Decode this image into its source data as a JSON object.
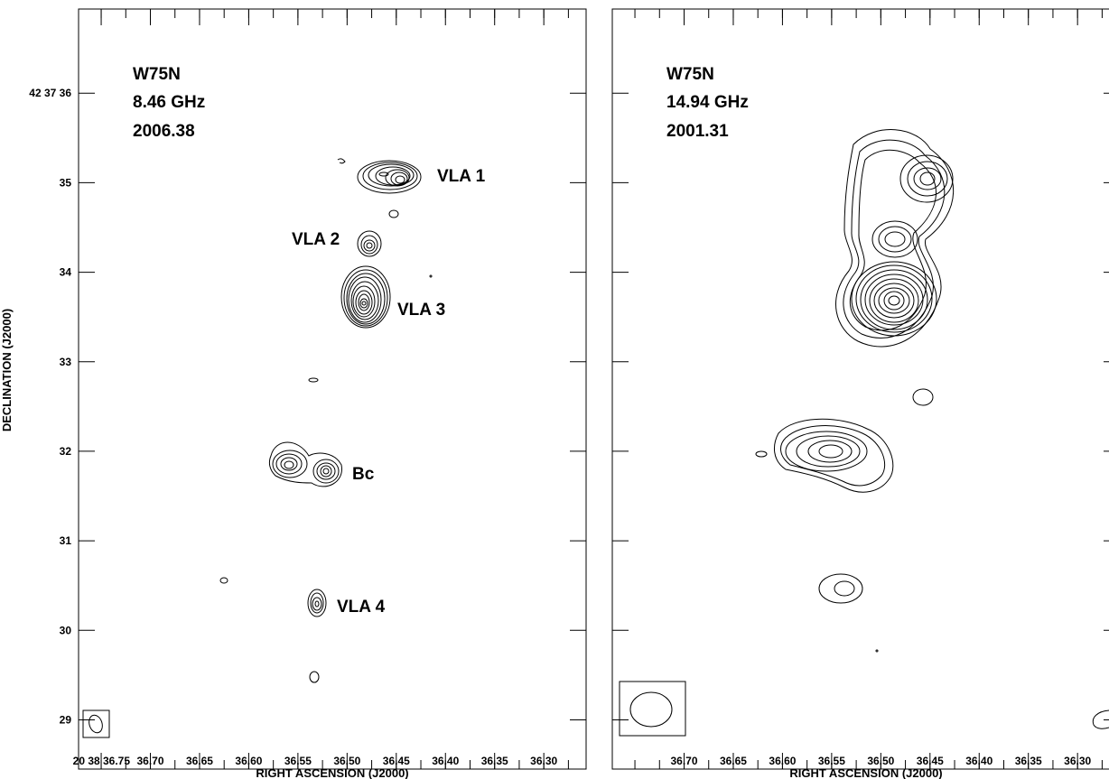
{
  "chart_data": [
    {
      "type": "contour",
      "panel_text": [
        "W75N",
        "8.46 GHz",
        "2006.38"
      ],
      "xlabel": "RIGHT ASCENSION (J2000)",
      "ylabel": "DECLINATION (J2000)",
      "x_ticks": [
        {
          "value": 36.75,
          "label": "20 38 36.75"
        },
        {
          "value": 36.7,
          "label": "36.70"
        },
        {
          "value": 36.65,
          "label": "36.65"
        },
        {
          "value": 36.6,
          "label": "36.60"
        },
        {
          "value": 36.55,
          "label": "36.55"
        },
        {
          "value": 36.5,
          "label": "36.50"
        },
        {
          "value": 36.45,
          "label": "36.45"
        },
        {
          "value": 36.4,
          "label": "36.40"
        },
        {
          "value": 36.35,
          "label": "36.35"
        },
        {
          "value": 36.3,
          "label": "36.30"
        }
      ],
      "y_ticks": [
        {
          "value": 36,
          "label": "42 37 36"
        },
        {
          "value": 35,
          "label": "35"
        },
        {
          "value": 34,
          "label": "34"
        },
        {
          "value": 33,
          "label": "33"
        },
        {
          "value": 32,
          "label": "32"
        },
        {
          "value": 31,
          "label": "31"
        },
        {
          "value": 30,
          "label": "30"
        },
        {
          "value": 29,
          "label": "29"
        }
      ],
      "xlim": [
        36.773,
        36.257
      ],
      "ylim": [
        28.45,
        36.94
      ],
      "sources": [
        {
          "name": "VLA 1",
          "ra": 36.432,
          "dec": 34.82,
          "peak_levels": 7
        },
        {
          "name": "VLA 2",
          "ra": 36.48,
          "dec": 34.07,
          "peak_levels": 4
        },
        {
          "name": "VLA 3",
          "ra": 36.482,
          "dec": 33.44,
          "peak_levels": 10
        },
        {
          "name": "Bc",
          "ra": 36.522,
          "dec": 31.5,
          "peak_levels": 5
        },
        {
          "name": "VLA 4",
          "ra": 36.533,
          "dec": 30.03,
          "peak_levels": 4
        }
      ],
      "beam_ellipse": true
    },
    {
      "type": "contour",
      "panel_text": [
        "W75N",
        "14.94 GHz",
        "2001.31"
      ],
      "xlabel": "RIGHT ASCENSION (J2000)",
      "x_ticks": [
        {
          "value": 36.7,
          "label": "36.70"
        },
        {
          "value": 36.65,
          "label": "36.65"
        },
        {
          "value": 36.6,
          "label": "36.60"
        },
        {
          "value": 36.55,
          "label": "36.55"
        },
        {
          "value": 36.5,
          "label": "36.50"
        },
        {
          "value": 36.45,
          "label": "36.45"
        },
        {
          "value": 36.4,
          "label": "36.40"
        },
        {
          "value": 36.35,
          "label": "36.35"
        },
        {
          "value": 36.3,
          "label": "36.30"
        }
      ],
      "xlim": [
        36.773,
        36.257
      ],
      "ylim": [
        28.45,
        36.94
      ],
      "beam_ellipse": true
    }
  ]
}
